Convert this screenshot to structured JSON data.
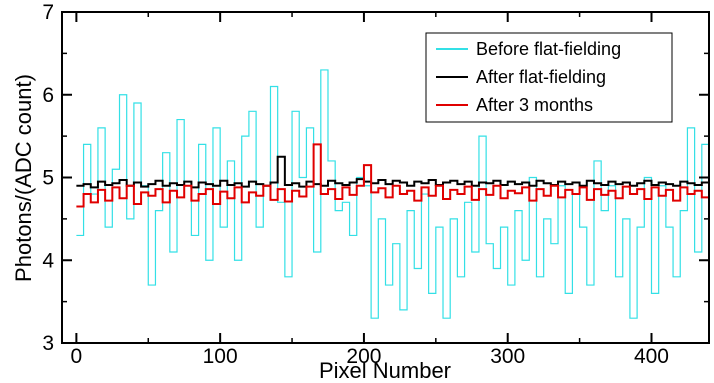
{
  "chart_data": {
    "type": "line",
    "title": "",
    "xlabel": "Pixel Number",
    "ylabel": "Photons/(ADC count)",
    "xlim": [
      -10,
      440
    ],
    "ylim": [
      3,
      7
    ],
    "x_ticks": [
      0,
      100,
      200,
      300,
      400
    ],
    "x_tick_labels": [
      "0",
      "100",
      "200",
      "300",
      "400"
    ],
    "y_ticks": [
      3,
      4,
      5,
      6,
      7
    ],
    "y_tick_labels": [
      "3",
      "4",
      "5",
      "6",
      "7"
    ],
    "grid": false,
    "legend_position": "top-right",
    "series": [
      {
        "name": "Before flat-fielding",
        "color": "#33e0e6",
        "x": [
          0,
          5,
          10,
          15,
          20,
          25,
          30,
          35,
          40,
          45,
          50,
          55,
          60,
          65,
          70,
          75,
          80,
          85,
          90,
          95,
          100,
          105,
          110,
          115,
          120,
          125,
          130,
          135,
          140,
          145,
          150,
          155,
          160,
          165,
          170,
          175,
          180,
          185,
          190,
          195,
          200,
          205,
          210,
          215,
          220,
          225,
          230,
          235,
          240,
          245,
          250,
          255,
          260,
          265,
          270,
          275,
          280,
          285,
          290,
          295,
          300,
          305,
          310,
          315,
          320,
          325,
          330,
          335,
          340,
          345,
          350,
          355,
          360,
          365,
          370,
          375,
          380,
          385,
          390,
          395,
          400,
          405,
          410,
          415,
          420,
          425,
          430,
          435,
          440
        ],
        "y": [
          4.3,
          5.4,
          4.8,
          5.6,
          4.4,
          5.1,
          6.0,
          4.5,
          5.9,
          4.9,
          3.7,
          4.6,
          5.3,
          4.1,
          5.7,
          4.9,
          4.3,
          5.4,
          4.0,
          5.6,
          4.4,
          5.2,
          4.0,
          5.5,
          5.8,
          4.4,
          4.9,
          6.1,
          4.7,
          3.8,
          5.8,
          5.0,
          5.6,
          4.1,
          6.3,
          5.2,
          4.6,
          4.7,
          4.3,
          5.0,
          4.9,
          3.3,
          4.5,
          3.7,
          4.2,
          3.4,
          4.6,
          3.9,
          4.8,
          3.6,
          4.4,
          3.3,
          4.5,
          3.8,
          4.7,
          4.1,
          5.5,
          4.2,
          3.9,
          4.4,
          3.7,
          4.6,
          4.0,
          5.0,
          3.8,
          4.5,
          4.2,
          4.9,
          3.6,
          4.8,
          4.4,
          3.7,
          5.2,
          4.6,
          4.9,
          3.8,
          4.5,
          3.3,
          4.4,
          5.0,
          3.6,
          4.9,
          4.4,
          3.8,
          4.6,
          5.6,
          4.1,
          5.4,
          4.9
        ]
      },
      {
        "name": "After flat-fielding",
        "color": "#000000",
        "x": [
          0,
          5,
          10,
          15,
          20,
          25,
          30,
          35,
          40,
          45,
          50,
          55,
          60,
          65,
          70,
          75,
          80,
          85,
          90,
          95,
          100,
          105,
          110,
          115,
          120,
          125,
          130,
          135,
          140,
          145,
          150,
          155,
          160,
          165,
          170,
          175,
          180,
          185,
          190,
          195,
          200,
          205,
          210,
          215,
          220,
          225,
          230,
          235,
          240,
          245,
          250,
          255,
          260,
          265,
          270,
          275,
          280,
          285,
          290,
          295,
          300,
          305,
          310,
          315,
          320,
          325,
          330,
          335,
          340,
          345,
          350,
          355,
          360,
          365,
          370,
          375,
          380,
          385,
          390,
          395,
          400,
          405,
          410,
          415,
          420,
          425,
          430,
          435,
          440
        ],
        "y": [
          4.9,
          4.92,
          4.88,
          4.95,
          4.91,
          4.93,
          4.97,
          4.9,
          4.94,
          4.89,
          4.92,
          4.96,
          4.9,
          4.93,
          4.91,
          4.95,
          4.88,
          4.94,
          4.92,
          4.9,
          4.96,
          4.91,
          4.93,
          4.89,
          4.95,
          4.92,
          4.9,
          4.94,
          5.25,
          4.91,
          4.93,
          4.89,
          4.95,
          4.92,
          4.9,
          4.96,
          4.93,
          4.91,
          4.94,
          4.98,
          4.95,
          4.93,
          4.97,
          4.92,
          4.96,
          4.94,
          4.9,
          4.95,
          4.93,
          4.97,
          4.91,
          4.94,
          4.96,
          4.92,
          4.95,
          4.9,
          4.94,
          4.93,
          4.96,
          4.91,
          4.95,
          4.92,
          4.94,
          4.9,
          4.96,
          4.93,
          4.91,
          4.95,
          4.92,
          4.94,
          4.9,
          4.96,
          4.93,
          4.91,
          4.95,
          4.92,
          4.94,
          4.9,
          4.93,
          4.96,
          4.91,
          4.94,
          4.92,
          4.9,
          4.95,
          4.93,
          4.91,
          4.94,
          4.92
        ]
      },
      {
        "name": "After 3 months",
        "color": "#e00000",
        "x": [
          0,
          5,
          10,
          15,
          20,
          25,
          30,
          35,
          40,
          45,
          50,
          55,
          60,
          65,
          70,
          75,
          80,
          85,
          90,
          95,
          100,
          105,
          110,
          115,
          120,
          125,
          130,
          135,
          140,
          145,
          150,
          155,
          160,
          165,
          170,
          175,
          180,
          185,
          190,
          195,
          200,
          205,
          210,
          215,
          220,
          225,
          230,
          235,
          240,
          245,
          250,
          255,
          260,
          265,
          270,
          275,
          280,
          285,
          290,
          295,
          300,
          305,
          310,
          315,
          320,
          325,
          330,
          335,
          340,
          345,
          350,
          355,
          360,
          365,
          370,
          375,
          380,
          385,
          390,
          395,
          400,
          405,
          410,
          415,
          420,
          425,
          430,
          435,
          440
        ],
        "y": [
          4.65,
          4.8,
          4.7,
          4.85,
          4.72,
          4.88,
          4.75,
          4.9,
          4.68,
          4.82,
          4.78,
          4.86,
          4.7,
          4.84,
          4.76,
          4.9,
          4.72,
          4.8,
          4.86,
          4.68,
          4.83,
          4.75,
          4.88,
          4.7,
          4.82,
          4.78,
          4.9,
          4.73,
          4.86,
          4.71,
          4.84,
          4.77,
          4.89,
          5.4,
          4.8,
          4.86,
          4.74,
          4.88,
          4.79,
          4.9,
          5.15,
          4.82,
          4.87,
          4.76,
          4.9,
          4.8,
          4.84,
          4.72,
          4.88,
          4.78,
          4.9,
          4.74,
          4.85,
          4.8,
          4.89,
          4.73,
          4.86,
          4.79,
          4.9,
          4.75,
          4.84,
          4.81,
          4.88,
          4.72,
          4.86,
          4.78,
          4.9,
          4.76,
          4.85,
          4.8,
          4.88,
          4.73,
          4.86,
          4.79,
          4.84,
          4.75,
          4.89,
          4.8,
          4.86,
          4.74,
          4.88,
          4.78,
          4.85,
          4.72,
          4.88,
          4.8,
          4.84,
          4.76,
          4.86
        ]
      }
    ]
  }
}
